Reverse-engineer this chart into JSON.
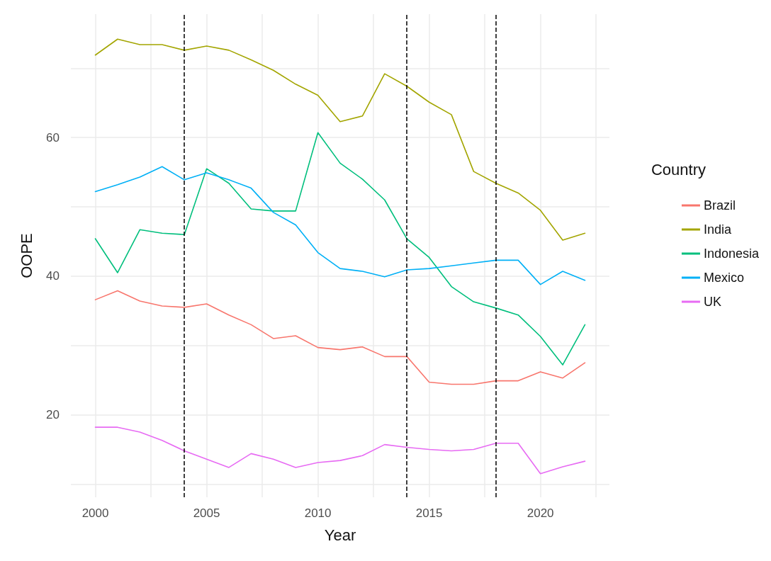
{
  "chart_data": {
    "type": "line",
    "xlabel": "Year",
    "ylabel": "OOPE",
    "legend_title": "Country",
    "legend": "right",
    "grid": true,
    "marker": "none",
    "line_style": "solid",
    "x": [
      2000,
      2001,
      2002,
      2003,
      2004,
      2005,
      2006,
      2007,
      2008,
      2009,
      2010,
      2011,
      2012,
      2013,
      2014,
      2015,
      2016,
      2017,
      2018,
      2019,
      2020,
      2021,
      2022
    ],
    "xlim": [
      1998.9,
      2023.1
    ],
    "xticks": [
      2000,
      {
        "value": 2002.5,
        "label": null
      },
      2005,
      {
        "value": 2007.5,
        "label": null
      },
      2010,
      {
        "value": 2012.5,
        "label": null
      },
      2015,
      {
        "value": 2017.5,
        "label": null
      },
      2020,
      {
        "value": 2022.5,
        "label": null
      }
    ],
    "ylim": [
      8.1,
      77.8
    ],
    "yticks": [
      {
        "value": 10,
        "label": null
      },
      20,
      {
        "value": 30,
        "label": null
      },
      40,
      {
        "value": 50,
        "label": null
      },
      60,
      {
        "value": 70,
        "label": null
      }
    ],
    "series": [
      {
        "name": "Brazil",
        "color": "#f8766d",
        "values": [
          36.6,
          37.9,
          36.4,
          35.7,
          35.5,
          36.0,
          34.4,
          33.0,
          31.0,
          31.4,
          29.7,
          29.4,
          29.8,
          28.4,
          28.4,
          24.7,
          24.4,
          24.4,
          24.9,
          24.9,
          26.2,
          25.3,
          27.5
        ]
      },
      {
        "name": "India",
        "color": "#a3a500",
        "values": [
          71.9,
          74.2,
          73.4,
          73.4,
          72.6,
          73.2,
          72.6,
          71.2,
          69.7,
          67.7,
          66.1,
          62.3,
          63.1,
          69.2,
          67.4,
          65.1,
          63.3,
          55.1,
          53.4,
          52.0,
          49.5,
          45.2,
          46.2
        ]
      },
      {
        "name": "Indonesia",
        "color": "#00bf7d",
        "values": [
          45.4,
          40.5,
          46.7,
          46.2,
          46.0,
          55.5,
          53.4,
          49.7,
          49.4,
          49.4,
          60.7,
          56.3,
          54.0,
          51.0,
          45.4,
          42.7,
          38.5,
          36.3,
          35.4,
          34.4,
          31.3,
          27.2,
          33.0
        ]
      },
      {
        "name": "Mexico",
        "color": "#00b0f6",
        "values": [
          52.2,
          53.2,
          54.3,
          55.8,
          53.9,
          54.9,
          53.9,
          52.7,
          49.2,
          47.4,
          43.4,
          41.1,
          40.7,
          39.9,
          40.9,
          41.1,
          41.5,
          41.9,
          42.3,
          42.3,
          38.8,
          40.7,
          39.4
        ]
      },
      {
        "name": "UK",
        "color": "#e76bf3",
        "values": [
          18.2,
          18.2,
          17.5,
          16.3,
          14.8,
          13.6,
          12.4,
          14.4,
          13.6,
          12.4,
          13.1,
          13.4,
          14.1,
          15.7,
          15.3,
          15.0,
          14.8,
          15.0,
          15.9,
          15.9,
          11.5,
          12.5,
          13.3
        ]
      }
    ],
    "ref_lines": [
      {
        "axis": "x",
        "value": 2004,
        "color": "#000000",
        "line_style": "dashed"
      },
      {
        "axis": "x",
        "value": 2014,
        "color": "#000000",
        "line_style": "dashed"
      },
      {
        "axis": "x",
        "value": 2018,
        "color": "#000000",
        "line_style": "dashed"
      }
    ]
  }
}
